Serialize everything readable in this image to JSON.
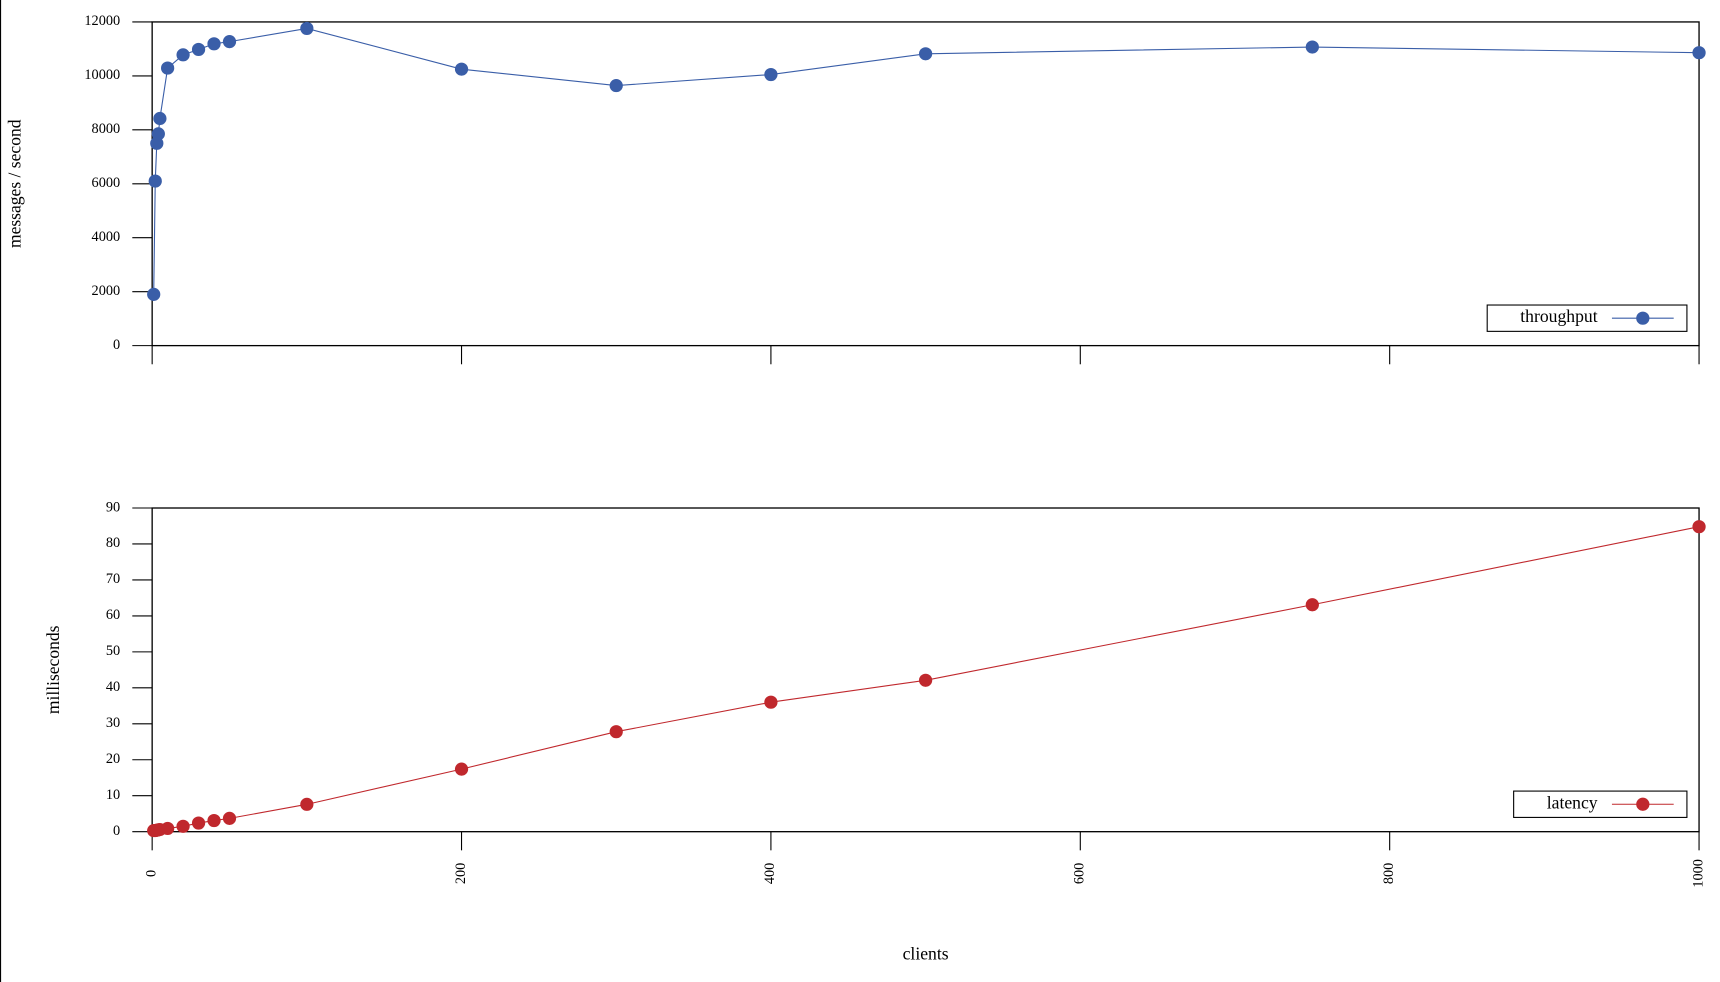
{
  "chart_data": [
    {
      "type": "line",
      "y_label": "messages / second",
      "x": [
        1,
        2,
        3,
        4,
        5,
        10,
        20,
        30,
        40,
        50,
        100,
        200,
        300,
        400,
        500,
        750,
        1000
      ],
      "series": [
        {
          "name": "throughput",
          "color": "#3a5ea8",
          "values": [
            1900,
            6100,
            7500,
            7850,
            8420,
            10290,
            10780,
            10980,
            11190,
            11270,
            11760,
            10250,
            9640,
            10050,
            10820,
            11070,
            10860
          ]
        }
      ],
      "xlim": [
        0,
        1000
      ],
      "xticks": [
        0,
        200,
        400,
        600,
        800,
        1000
      ],
      "xtick_labels": false,
      "ylim": [
        0,
        12000
      ],
      "yticks": [
        0,
        2000,
        4000,
        6000,
        8000,
        10000,
        12000
      ],
      "legend": "lower right"
    },
    {
      "type": "line",
      "y_label": "milliseconds",
      "x_label": "clients",
      "x": [
        1,
        2,
        3,
        4,
        5,
        10,
        20,
        30,
        40,
        50,
        100,
        200,
        300,
        400,
        500,
        750,
        1000
      ],
      "series": [
        {
          "name": "latency",
          "color": "#c0282d",
          "values": [
            0.3,
            0.3,
            0.4,
            0.5,
            0.6,
            0.9,
            1.5,
            2.4,
            3.1,
            3.7,
            7.6,
            17.4,
            27.8,
            36,
            42.1,
            63.1,
            84.8
          ]
        }
      ],
      "xlim": [
        0,
        1000
      ],
      "xticks": [
        0,
        200,
        400,
        600,
        800,
        1000
      ],
      "xtick_labels": true,
      "ylim": [
        0,
        90
      ],
      "yticks": [
        0,
        10,
        20,
        30,
        40,
        50,
        60,
        70,
        80,
        90
      ],
      "legend": "lower right"
    }
  ]
}
